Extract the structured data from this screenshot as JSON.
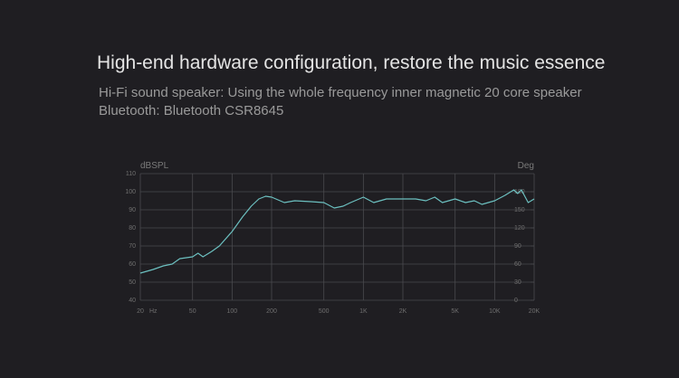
{
  "header": {
    "title": "High-end hardware configuration, restore the music essence",
    "lines": [
      "Hi-Fi sound speaker: Using the whole frequency inner magnetic 20 core speaker",
      "Bluetooth: Bluetooth CSR8645"
    ]
  },
  "chart_data": {
    "type": "line",
    "ylabel": "dBSPL",
    "y2label": "Deg",
    "xlabel": "Hz",
    "log_x": true,
    "grid": true,
    "xlim": [
      20,
      20000
    ],
    "xticks": [
      20,
      50,
      100,
      200,
      500,
      {
        "value": 1000,
        "label": "1K"
      },
      {
        "value": 2000,
        "label": "2K"
      },
      {
        "value": 5000,
        "label": "5K"
      },
      {
        "value": 10000,
        "label": "10K"
      },
      {
        "value": 20000,
        "label": "20K"
      }
    ],
    "ylim": [
      40,
      110
    ],
    "yticks": [
      40,
      50,
      60,
      70,
      80,
      90,
      100,
      110
    ],
    "y2lim": [
      0,
      210
    ],
    "y2ticks": [
      0,
      30,
      60,
      90,
      120,
      150,
      180
    ],
    "series": [
      {
        "color": "#6cc0c0",
        "x": [
          20,
          25,
          30,
          35,
          40,
          50,
          55,
          60,
          70,
          80,
          100,
          120,
          140,
          160,
          180,
          200,
          250,
          300,
          400,
          500,
          600,
          700,
          800,
          1000,
          1200,
          1500,
          2000,
          2500,
          3000,
          3500,
          4000,
          5000,
          6000,
          7000,
          8000,
          10000,
          12000,
          14000,
          15000,
          16000,
          18000,
          20000
        ],
        "values": [
          55,
          57,
          59,
          60,
          63,
          64,
          66,
          64,
          67,
          70,
          78,
          86,
          92,
          96,
          97.5,
          97,
          94,
          95,
          94.5,
          94,
          91,
          92,
          94,
          97,
          94,
          96,
          96,
          96,
          95,
          97,
          94,
          96,
          94,
          95,
          93,
          95,
          98,
          101,
          99,
          101,
          94,
          96
        ]
      }
    ]
  }
}
